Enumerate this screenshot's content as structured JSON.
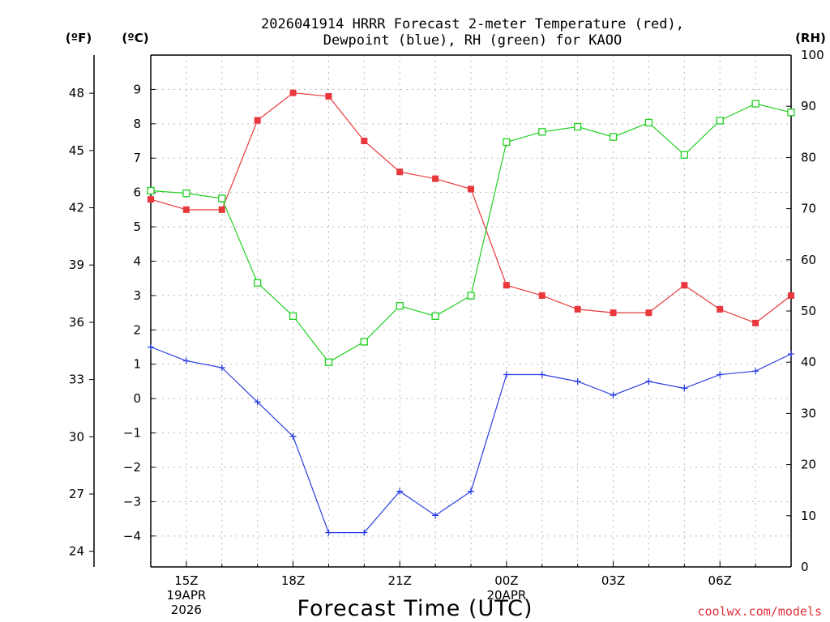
{
  "chart_data": {
    "type": "line",
    "title": "2026041914 HRRR Forecast 2-meter Temperature (red),",
    "title_line2": "Dewpoint (blue), RH (green) for KAOO",
    "units": {
      "fahrenheit": "(ºF)",
      "celsius": "(ºC)",
      "rh": "(RH)"
    },
    "xlabel": "Forecast Time (UTC)",
    "credit": "coolwx.com/models",
    "x_hours": [
      14,
      15,
      16,
      17,
      18,
      19,
      20,
      21,
      22,
      23,
      24,
      25,
      26,
      27,
      28,
      29,
      30,
      31,
      32
    ],
    "x_ticks": [
      {
        "hour": 15,
        "labels": [
          "15Z",
          "19APR",
          "2026"
        ]
      },
      {
        "hour": 18,
        "labels": [
          "18Z"
        ]
      },
      {
        "hour": 21,
        "labels": [
          "21Z"
        ]
      },
      {
        "hour": 24,
        "labels": [
          "00Z",
          "20APR"
        ]
      },
      {
        "hour": 27,
        "labels": [
          "03Z"
        ]
      },
      {
        "hour": 30,
        "labels": [
          "06Z"
        ]
      }
    ],
    "celsius_ticks": [
      -4,
      -3,
      -2,
      -1,
      0,
      1,
      2,
      3,
      4,
      5,
      6,
      7,
      8,
      9
    ],
    "fahrenheit_ticks": [
      24,
      27,
      30,
      33,
      36,
      39,
      42,
      45,
      48
    ],
    "rh_ticks": [
      0,
      10,
      20,
      30,
      40,
      50,
      60,
      70,
      80,
      90,
      100
    ],
    "celsius_range": [
      -4.9,
      10.0
    ],
    "rh_range": [
      0,
      100
    ],
    "grid": true,
    "series": [
      {
        "name": "Temperature",
        "color": "#e8383c",
        "marker": "filled-square",
        "axis": "celsius",
        "values": [
          5.8,
          5.5,
          5.5,
          8.1,
          8.9,
          8.8,
          7.5,
          6.6,
          6.4,
          6.1,
          3.3,
          3.0,
          2.6,
          2.5,
          2.5,
          3.3,
          2.6,
          2.2,
          3.0
        ]
      },
      {
        "name": "Dewpoint",
        "color": "#2a3fe0",
        "marker": "plus",
        "axis": "celsius",
        "values": [
          1.5,
          1.1,
          0.9,
          -0.1,
          -1.1,
          -3.9,
          -3.9,
          -2.7,
          -3.4,
          -2.7,
          0.7,
          0.7,
          0.5,
          0.1,
          0.5,
          0.3,
          0.7,
          0.8,
          1.3
        ]
      },
      {
        "name": "RH",
        "color": "#20d020",
        "marker": "open-square",
        "axis": "rh",
        "values": [
          73.5,
          73.0,
          72.0,
          55.5,
          49.0,
          40.0,
          44.0,
          51.0,
          49.0,
          53.0,
          83.0,
          85.0,
          86.0,
          84.0,
          86.8,
          80.5,
          87.2,
          90.5,
          88.8
        ]
      }
    ]
  }
}
